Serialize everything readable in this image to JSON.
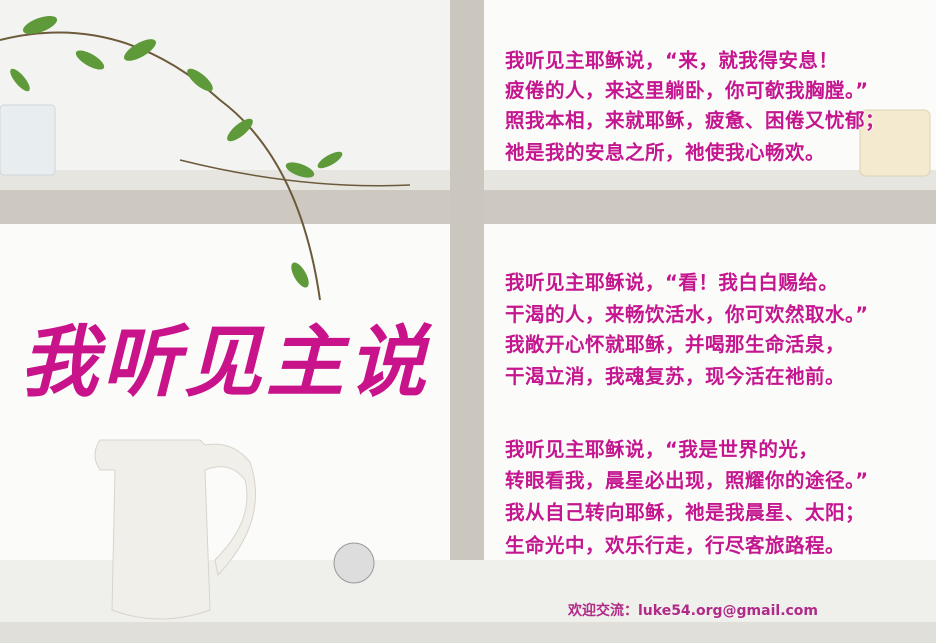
{
  "title": "我听见主说",
  "stanzas": [
    [
      "我听见主耶稣说，“来，就我得安息！",
      "疲倦的人，来这里躺卧，你可欹我胸膛。”",
      "照我本相，来就耶稣，疲惫、困倦又忧郁；",
      "祂是我的安息之所，祂使我心畅欢。"
    ],
    [
      "我听见主耶稣说，“看！我白白赐给。",
      "干渴的人，来畅饮活水，你可欢然取水。”",
      "我敞开心怀就耶稣，并喝那生命活泉，",
      "干渴立消，我魂复苏，现今活在祂前。"
    ],
    [
      "我听见主耶稣说，“我是世界的光，",
      "转眼看我，晨星必出现，照耀你的途径。”",
      "我从自己转向耶稣，祂是我晨星、太阳；",
      "生命光中，欢乐行走，行尽客旅路程。"
    ]
  ],
  "footer": "欢迎交流：luke54.org@gmail.com"
}
